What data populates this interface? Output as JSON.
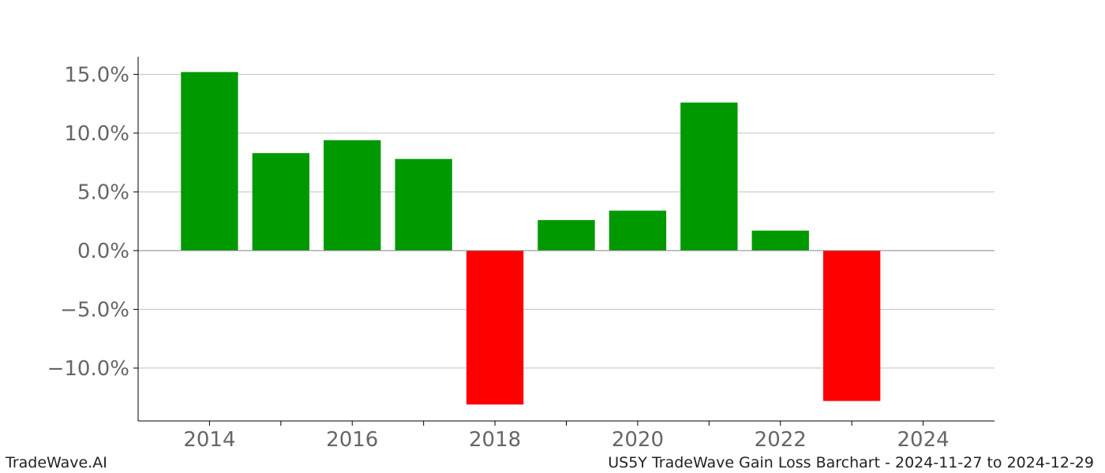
{
  "footer": {
    "brand": "TradeWave.AI",
    "title": "US5Y TradeWave Gain Loss Barchart - 2024-11-27 to 2024-12-29"
  },
  "colors": {
    "gain": "#009900",
    "loss": "#ff0000",
    "grid": "#c0c0c0",
    "tick_text": "#666666"
  },
  "chart_data": {
    "type": "bar",
    "title": "",
    "xlabel": "",
    "ylabel": "",
    "x": [
      2014,
      2015,
      2016,
      2017,
      2018,
      2019,
      2020,
      2021,
      2022,
      2023
    ],
    "values": [
      15.2,
      8.3,
      9.4,
      7.8,
      -13.1,
      2.6,
      3.4,
      12.6,
      1.7,
      -12.8
    ],
    "xlim": [
      2013,
      2025
    ],
    "ylim": [
      -14.5,
      16.5
    ],
    "x_ticks": [
      2014,
      2016,
      2018,
      2020,
      2022,
      2024
    ],
    "x_tick_labels": [
      "2014",
      "2016",
      "2018",
      "2020",
      "2022",
      "2024"
    ],
    "y_ticks": [
      -10,
      -5,
      0,
      5,
      10,
      15
    ],
    "y_tick_labels": [
      "−10.0%",
      "−5.0%",
      "0.0%",
      "5.0%",
      "10.0%",
      "15.0%"
    ],
    "grid": true,
    "legend": "none"
  }
}
